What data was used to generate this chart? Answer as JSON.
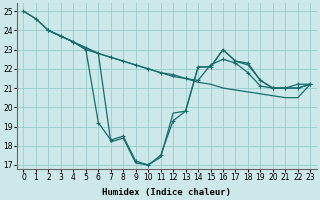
{
  "xlabel": "Humidex (Indice chaleur)",
  "bg_color": "#cce8e8",
  "grid_color": "#99cccc",
  "line_color": "#1a6b6b",
  "ylim": [
    16.8,
    25.4
  ],
  "xlim": [
    -0.5,
    23.5
  ],
  "yticks": [
    17,
    18,
    19,
    20,
    21,
    22,
    23,
    24,
    25
  ],
  "xticks": [
    0,
    1,
    2,
    3,
    4,
    5,
    6,
    7,
    8,
    9,
    10,
    11,
    12,
    13,
    14,
    15,
    16,
    17,
    18,
    19,
    20,
    21,
    22,
    23
  ],
  "line1_x": [
    0,
    1,
    2,
    3,
    4,
    5,
    6,
    7,
    8,
    9,
    10,
    11,
    12,
    13,
    14,
    15,
    16,
    17,
    18,
    19,
    20,
    21,
    22,
    23
  ],
  "line1_y": [
    25.0,
    24.6,
    24.0,
    23.7,
    23.4,
    23.1,
    22.8,
    22.6,
    22.4,
    22.2,
    22.0,
    21.8,
    21.6,
    21.5,
    21.3,
    21.2,
    21.0,
    20.9,
    20.8,
    20.7,
    20.6,
    20.5,
    20.5,
    21.2
  ],
  "line2_x": [
    0,
    1,
    2,
    3,
    4,
    5,
    6,
    7,
    8,
    9,
    10,
    11,
    12,
    13,
    14,
    15,
    16,
    17,
    18,
    19,
    20,
    21,
    22,
    23
  ],
  "line2_y": [
    25.0,
    24.6,
    24.0,
    23.7,
    23.4,
    23.1,
    22.8,
    22.6,
    22.4,
    22.2,
    22.0,
    21.8,
    21.7,
    21.5,
    21.4,
    22.2,
    22.5,
    22.3,
    21.8,
    21.1,
    21.0,
    21.0,
    21.2,
    21.2
  ],
  "line3_x": [
    2,
    3,
    4,
    5,
    6,
    7,
    8,
    9,
    10,
    11,
    12,
    13,
    14,
    15,
    16,
    17,
    18,
    19,
    20,
    21,
    22,
    23
  ],
  "line3_y": [
    24.0,
    23.7,
    23.4,
    23.0,
    19.2,
    18.3,
    18.5,
    17.2,
    17.0,
    17.5,
    19.3,
    19.8,
    22.1,
    22.1,
    23.0,
    22.4,
    22.3,
    21.4,
    21.0,
    21.0,
    21.0,
    21.2
  ],
  "line4_x": [
    2,
    3,
    4,
    5,
    6,
    7,
    8,
    9,
    10,
    11,
    12,
    13,
    14,
    15,
    16,
    17,
    18,
    19,
    20,
    21,
    22,
    23
  ],
  "line4_y": [
    24.0,
    23.7,
    23.4,
    23.0,
    22.8,
    18.2,
    18.4,
    17.1,
    17.0,
    17.4,
    19.7,
    19.8,
    22.1,
    22.1,
    23.0,
    22.4,
    22.2,
    21.4,
    21.0,
    21.0,
    21.0,
    21.2
  ]
}
